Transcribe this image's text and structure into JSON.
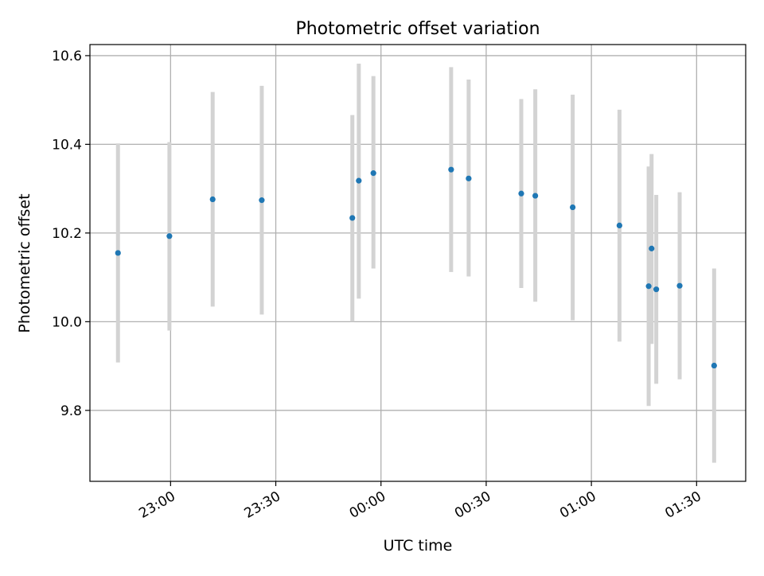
{
  "chart_data": {
    "type": "scatter",
    "title": "Photometric offset variation",
    "xlabel": "UTC time",
    "ylabel": "Photometric offset",
    "x_axis": {
      "kind": "time",
      "ticks": [
        "23:00",
        "23:30",
        "00:00",
        "00:30",
        "01:00",
        "01:30"
      ],
      "range": [
        "22:37:00",
        "01:44:00"
      ]
    },
    "y_axis": {
      "ticks": [
        "9.8",
        "10.0",
        "10.2",
        "10.4",
        "10.6"
      ],
      "range": [
        9.64,
        10.625
      ]
    },
    "grid": true,
    "legend": "none",
    "series": [
      {
        "x": [
          "22:45:00",
          "22:59:40",
          "23:12:00",
          "23:26:00",
          "23:51:50",
          "23:53:40",
          "23:57:50",
          "00:20:00",
          "00:25:00",
          "00:40:00",
          "00:44:00",
          "00:54:40",
          "01:08:00",
          "01:16:20",
          "01:17:10",
          "01:18:30",
          "01:25:10",
          "01:35:00"
        ],
        "y": [
          10.155,
          10.193,
          10.276,
          10.274,
          10.234,
          10.318,
          10.335,
          10.343,
          10.323,
          10.289,
          10.284,
          10.258,
          10.217,
          10.08,
          10.165,
          10.073,
          10.081,
          9.901
        ],
        "yerr_low": [
          9.908,
          9.98,
          10.034,
          10.016,
          10.0,
          10.052,
          10.12,
          10.112,
          10.102,
          10.076,
          10.045,
          10.003,
          9.955,
          9.81,
          9.95,
          9.86,
          9.87,
          9.682
        ],
        "yerr_high": [
          10.402,
          10.405,
          10.518,
          10.532,
          10.466,
          10.582,
          10.554,
          10.574,
          10.546,
          10.502,
          10.524,
          10.512,
          10.478,
          10.35,
          10.378,
          10.286,
          10.292,
          10.12
        ]
      }
    ],
    "colors": {
      "points": "#1f77b4",
      "errorbars": "#d3d3d3",
      "grid": "#b0b0b0"
    }
  }
}
